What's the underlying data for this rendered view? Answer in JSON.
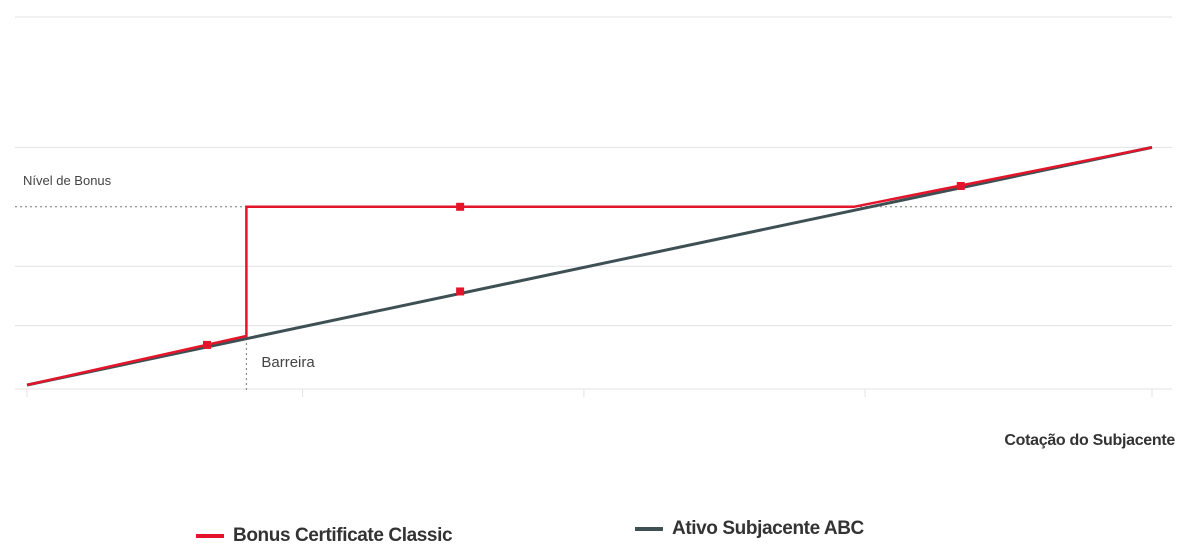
{
  "chart_data": {
    "type": "line",
    "xlabel": "Cotação do Subjacente",
    "xlim": [
      0,
      100
    ],
    "ylim": [
      0,
      100
    ],
    "grid": true,
    "gridlines_y": [
      20,
      40,
      60,
      80
    ],
    "bonus_level": {
      "label": "Nível de Bonus",
      "value": 60
    },
    "barrier": {
      "label": "Barreira",
      "value": 19.5
    },
    "series": [
      {
        "name": "Bonus Certificate Classic",
        "color": "#e4152b",
        "points": [
          [
            0,
            0
          ],
          [
            19.5,
            16.5
          ],
          [
            19.5,
            60
          ],
          [
            73.5,
            60
          ],
          [
            100,
            80
          ]
        ],
        "markers": [
          [
            16,
            13.5
          ],
          [
            38.5,
            60
          ],
          [
            83,
            67
          ]
        ]
      },
      {
        "name": "Ativo Subjacente ABC",
        "color": "#3e5054",
        "points": [
          [
            0,
            0
          ],
          [
            100,
            80
          ]
        ],
        "markers": [
          [
            38.5,
            31.5
          ]
        ]
      }
    ]
  }
}
